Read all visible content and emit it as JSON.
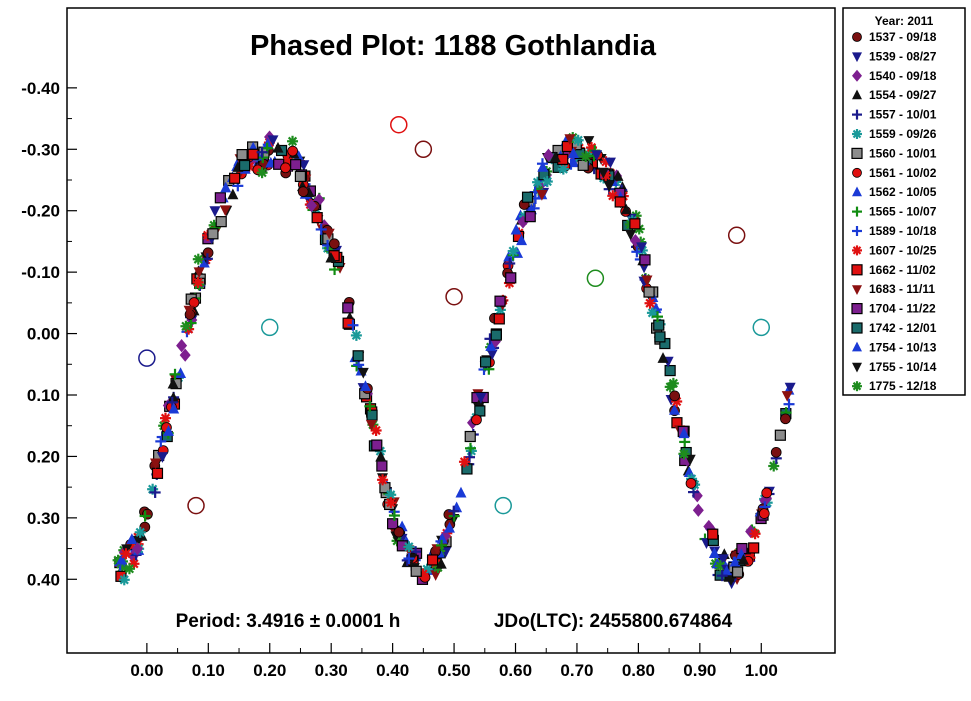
{
  "chart_data": {
    "type": "scatter",
    "title": "Phased Plot: 1188 Gothlandia",
    "xlabel": "",
    "ylabel": "",
    "xlim": [
      -0.13,
      1.12
    ],
    "ylim": [
      0.52,
      -0.53
    ],
    "y_inverted": true,
    "grid": false,
    "legend_placement": "outside-right",
    "x_ticks": [
      "0.00",
      "0.10",
      "0.20",
      "0.30",
      "0.40",
      "0.50",
      "0.60",
      "0.70",
      "0.80",
      "0.90",
      "1.00"
    ],
    "y_ticks": [
      "-0.40",
      "-0.30",
      "-0.20",
      "-0.10",
      "0.00",
      "0.10",
      "0.20",
      "0.30",
      "0.40"
    ],
    "annotations": {
      "period": "Period: 3.4916 ± 0.0001 h",
      "epoch": "JDo(LTC): 2455800.674864"
    },
    "legend_title": "Year: 2011",
    "model": {
      "mean": 0.0,
      "components": [
        {
          "harmonic": 2,
          "amplitude": 0.34,
          "phase_offset": -0.05
        },
        {
          "harmonic": 4,
          "amplitude": 0.045,
          "phase_offset": 0.45
        }
      ]
    },
    "series": [
      {
        "label": "1537 - 09/18",
        "marker": "circle",
        "color": "#7a1010"
      },
      {
        "label": "1539 - 08/27",
        "marker": "triangle-down",
        "color": "#1a1a8c"
      },
      {
        "label": "1540 - 09/18",
        "marker": "diamond",
        "color": "#7d1f8f"
      },
      {
        "label": "1554 - 09/27",
        "marker": "triangle-up",
        "color": "#111111"
      },
      {
        "label": "1557 - 10/01",
        "marker": "plus",
        "color": "#1a1a8c"
      },
      {
        "label": "1559 - 09/26",
        "marker": "asterisk",
        "color": "#1a9999"
      },
      {
        "label": "1560 - 10/01",
        "marker": "square",
        "color": "#8c8c8c"
      },
      {
        "label": "1561 - 10/02",
        "marker": "circle",
        "color": "#e01010"
      },
      {
        "label": "1562 - 10/05",
        "marker": "triangle-up",
        "color": "#1a3ad6"
      },
      {
        "label": "1565 - 10/07",
        "marker": "plus",
        "color": "#108c10"
      },
      {
        "label": "1589 - 10/18",
        "marker": "plus",
        "color": "#1a3ad6"
      },
      {
        "label": "1607 - 10/25",
        "marker": "asterisk",
        "color": "#e01010"
      },
      {
        "label": "1662 - 11/02",
        "marker": "square",
        "color": "#e01010"
      },
      {
        "label": "1683 - 11/11",
        "marker": "triangle-down",
        "color": "#8c1010"
      },
      {
        "label": "1704 - 11/22",
        "marker": "square",
        "color": "#7d1f8f"
      },
      {
        "label": "1742 - 12/01",
        "marker": "square",
        "color": "#1a6b6b"
      },
      {
        "label": "1754 - 10/13",
        "marker": "triangle-up",
        "color": "#1a3ad6"
      },
      {
        "label": "1755 - 10/14",
        "marker": "triangle-down",
        "color": "#111111"
      },
      {
        "label": "1775 - 12/18",
        "marker": "asterisk",
        "color": "#1e8c1e"
      }
    ]
  }
}
